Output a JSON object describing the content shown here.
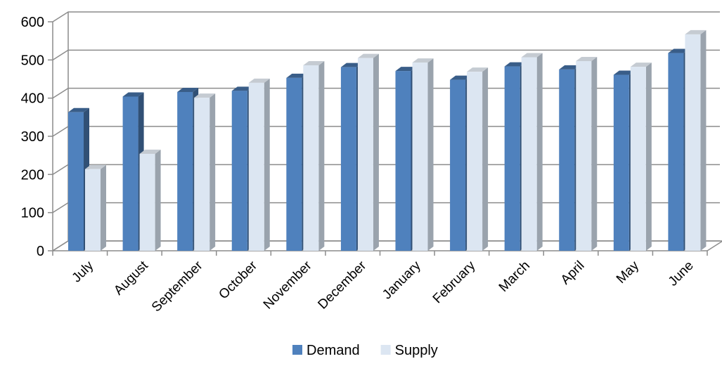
{
  "chart_data": {
    "type": "bar",
    "style": "3d-clustered-column",
    "categories": [
      "July",
      "August",
      "September",
      "October",
      "November",
      "December",
      "January",
      "February",
      "March",
      "April",
      "May",
      "June"
    ],
    "series": [
      {
        "name": "Demand",
        "values": [
          363,
          404,
          416,
          419,
          453,
          481,
          471,
          448,
          483,
          475,
          461,
          518
        ],
        "color": "#4f81bd"
      },
      {
        "name": "Supply",
        "values": [
          214,
          254,
          401,
          440,
          486,
          505,
          493,
          469,
          507,
          497,
          482,
          567
        ],
        "color": "#dce6f2"
      }
    ],
    "yticks": [
      "0",
      "100",
      "200",
      "300",
      "400",
      "500",
      "600"
    ],
    "ylim": [
      0,
      600
    ],
    "grid": true,
    "legend_position": "bottom",
    "title": "",
    "xlabel": "",
    "ylabel": ""
  }
}
